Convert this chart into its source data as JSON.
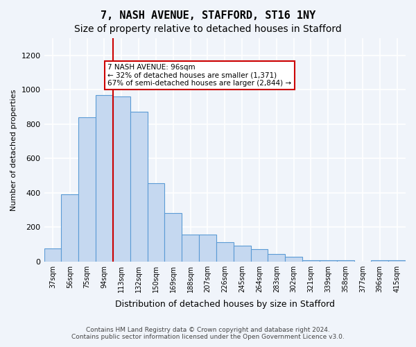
{
  "title": "7, NASH AVENUE, STAFFORD, ST16 1NY",
  "subtitle": "Size of property relative to detached houses in Stafford",
  "xlabel": "Distribution of detached houses by size in Stafford",
  "ylabel": "Number of detached properties",
  "categories": [
    "37sqm",
    "56sqm",
    "75sqm",
    "94sqm",
    "113sqm",
    "132sqm",
    "150sqm",
    "169sqm",
    "188sqm",
    "207sqm",
    "226sqm",
    "245sqm",
    "264sqm",
    "283sqm",
    "302sqm",
    "321sqm",
    "339sqm",
    "358sqm",
    "377sqm",
    "396sqm",
    "415sqm"
  ],
  "values": [
    75,
    390,
    840,
    970,
    960,
    870,
    455,
    280,
    155,
    155,
    110,
    90,
    70,
    45,
    25,
    5,
    5,
    5,
    0,
    5,
    5
  ],
  "bar_color": "#c5d8f0",
  "bar_edgecolor": "#5b9bd5",
  "property_line_x": 96,
  "annotation_text": "7 NASH AVENUE: 96sqm\n← 32% of detached houses are smaller (1,371)\n67% of semi-detached houses are larger (2,844) →",
  "annotation_box_color": "#ffffff",
  "annotation_box_edgecolor": "#cc0000",
  "vline_color": "#cc0000",
  "footer_line1": "Contains HM Land Registry data © Crown copyright and database right 2024.",
  "footer_line2": "Contains public sector information licensed under the Open Government Licence v3.0.",
  "ylim": [
    0,
    1300
  ],
  "yticks": [
    0,
    200,
    400,
    600,
    800,
    1000,
    1200
  ],
  "background_color": "#f0f4fa",
  "axes_background": "#f0f4fa",
  "grid_color": "#ffffff",
  "title_fontsize": 11,
  "subtitle_fontsize": 10,
  "xlabel_fontsize": 9,
  "ylabel_fontsize": 8
}
